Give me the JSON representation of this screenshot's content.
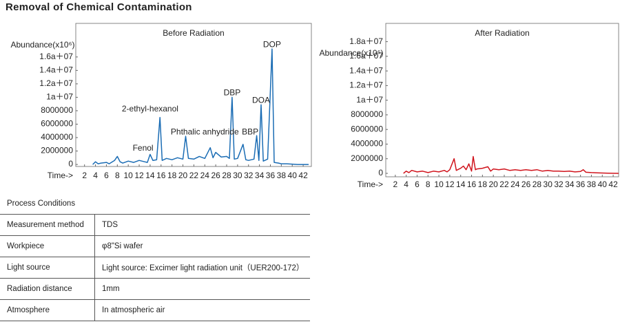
{
  "title": "Removal of Chemical Contamination",
  "chart_data": [
    {
      "type": "line",
      "title": "Before Radiation",
      "ylabel": "Abundance(x10⁶)",
      "xlabel": "Time->",
      "xlim": [
        0.4,
        43.5
      ],
      "ylim": [
        -300000,
        21000000
      ],
      "xticks": [
        2,
        4,
        6,
        8,
        10,
        12,
        14,
        16,
        18,
        20,
        22,
        24,
        26,
        28,
        30,
        32,
        34,
        36,
        38,
        40,
        42
      ],
      "yticks": [
        0,
        2000000,
        4000000,
        6000000,
        8000000,
        {
          "value": 10000000,
          "label": "1a＋07"
        },
        {
          "value": 12000000,
          "label": "1.2a＋07"
        },
        {
          "value": 14000000,
          "label": "1.4a＋07"
        },
        {
          "value": 16000000,
          "label": "1.6a＋07"
        }
      ],
      "series": [
        {
          "color": "#1a6cb4",
          "x": [
            3.5,
            4,
            4.5,
            5,
            6,
            6.5,
            7.5,
            8,
            8.5,
            9,
            10,
            11,
            12,
            13,
            13.5,
            14,
            14.5,
            15.2,
            15.8,
            16.2,
            17,
            18,
            19,
            20,
            20.5,
            21,
            22,
            23,
            24,
            25,
            25.5,
            26,
            27,
            28,
            28.5,
            29,
            29.4,
            30,
            31,
            31.5,
            32,
            33,
            33.5,
            33.9,
            34.3,
            34.7,
            35.5,
            36.3,
            36.7,
            37.5,
            38,
            39,
            40,
            41,
            43
          ],
          "values": [
            0,
            400000,
            100000,
            200000,
            300000,
            100000,
            600000,
            1200000,
            400000,
            200000,
            500000,
            300000,
            600000,
            400000,
            300000,
            1500000,
            600000,
            700000,
            7000000,
            600000,
            900000,
            700000,
            1000000,
            800000,
            4200000,
            900000,
            800000,
            1200000,
            900000,
            2500000,
            1000000,
            1800000,
            1100000,
            1200000,
            900000,
            10000000,
            800000,
            900000,
            3000000,
            700000,
            600000,
            800000,
            4300000,
            600000,
            8900000,
            500000,
            800000,
            17200000,
            300000,
            200000,
            100000,
            100000,
            50000,
            0,
            0
          ]
        }
      ],
      "annotations": [
        {
          "text": "Fenol",
          "x": 12.7,
          "y": 2400000
        },
        {
          "text": "2-ethyl-hexanol",
          "x": 14,
          "y": 8200000
        },
        {
          "text": "Phthalic anhydride",
          "x": 24,
          "y": 4800000
        },
        {
          "text": "DBP",
          "x": 29,
          "y": 10600000
        },
        {
          "text": "BBP",
          "x": 32.3,
          "y": 4800000
        },
        {
          "text": "DOA",
          "x": 34.3,
          "y": 9500000
        },
        {
          "text": "DOP",
          "x": 36.3,
          "y": 17800000
        }
      ]
    },
    {
      "type": "line",
      "title": "After Radiation",
      "ylabel": "Abundance(x10⁶)",
      "xlabel": "Time->",
      "xlim": [
        0.25,
        43.0
      ],
      "ylim": [
        -470000,
        20500000
      ],
      "xticks": [
        2,
        4,
        6,
        8,
        10,
        12,
        14,
        16,
        18,
        20,
        22,
        24,
        26,
        28,
        30,
        32,
        34,
        36,
        38,
        40,
        42
      ],
      "yticks": [
        0,
        2000000,
        4000000,
        6000000,
        8000000,
        {
          "value": 10000000,
          "label": "1a＋07"
        },
        {
          "value": 12000000,
          "label": "1.2a＋07"
        },
        {
          "value": 14000000,
          "label": "1.4a＋07"
        },
        {
          "value": 16000000,
          "label": "1.6a＋07"
        },
        {
          "value": 18000000,
          "label": "1.8a＋07"
        }
      ],
      "series": [
        {
          "color": "#d0121b",
          "x": [
            3.5,
            4,
            4.5,
            5,
            6,
            7,
            8,
            9,
            10,
            11,
            11.5,
            12,
            12.8,
            13.2,
            14,
            14.5,
            15,
            15.5,
            16,
            16.3,
            16.7,
            17,
            18,
            19,
            19.5,
            20,
            21,
            22,
            23,
            24,
            25,
            26,
            27,
            28,
            29,
            30,
            31,
            32,
            33,
            34,
            35,
            36,
            36.5,
            37,
            38,
            39,
            40,
            41,
            43
          ],
          "values": [
            0,
            300000,
            100000,
            400000,
            200000,
            300000,
            100000,
            300000,
            200000,
            400000,
            200000,
            500000,
            2000000,
            400000,
            700000,
            1000000,
            500000,
            1300000,
            300000,
            2300000,
            500000,
            600000,
            700000,
            900000,
            300000,
            600000,
            500000,
            600000,
            400000,
            500000,
            400000,
            500000,
            400000,
            500000,
            300000,
            400000,
            300000,
            300000,
            250000,
            300000,
            200000,
            250000,
            500000,
            150000,
            100000,
            80000,
            50000,
            30000,
            0
          ]
        }
      ],
      "annotations": []
    }
  ],
  "table": {
    "caption": "Process Conditions",
    "rows": [
      [
        "Measurement method",
        "TDS"
      ],
      [
        "Workpiece",
        "φ8\"Si wafer"
      ],
      [
        "Light source",
        "Light source: Excimer light radiation unit（UER200-172）"
      ],
      [
        "Radiation distance",
        "1mm"
      ],
      [
        "Atmosphere",
        "In atmospheric air"
      ]
    ]
  }
}
